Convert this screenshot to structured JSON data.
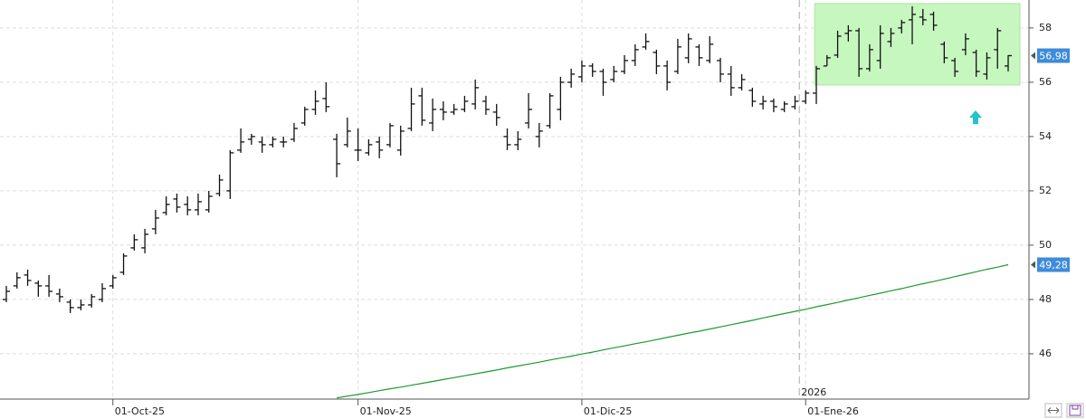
{
  "chart_data": {
    "type": "ohlc",
    "categories": [
      null,
      null,
      null,
      null,
      null,
      null,
      null,
      null,
      null,
      null,
      "01-Oct-25",
      null,
      null,
      null,
      null,
      null,
      null,
      null,
      null,
      null,
      null,
      null,
      null,
      null,
      null,
      null,
      null,
      null,
      null,
      null,
      null,
      null,
      null,
      "01-Nov-25",
      null,
      null,
      null,
      null,
      null,
      null,
      null,
      null,
      null,
      null,
      null,
      null,
      null,
      null,
      null,
      null,
      null,
      null,
      null,
      null,
      "01-Dic-25",
      null,
      null,
      null,
      null,
      null,
      null,
      null,
      null,
      null,
      null,
      null,
      null,
      null,
      null,
      null,
      null,
      null,
      null,
      null,
      null,
      "01-Ene-26",
      null,
      null,
      null,
      null,
      null,
      null,
      null,
      null,
      null,
      null,
      null,
      null,
      null,
      null,
      null,
      null,
      null,
      null,
      null
    ],
    "ohlc": {
      "color": "#111111",
      "open": [
        48.0,
        48.5,
        48.9,
        48.6,
        48.5,
        48.2,
        47.9,
        47.7,
        47.8,
        48.0,
        48.5,
        49.0,
        49.9,
        49.9,
        50.6,
        51.2,
        51.7,
        51.5,
        51.3,
        51.3,
        51.9,
        52.0,
        53.5,
        53.9,
        53.8,
        53.7,
        53.8,
        53.9,
        54.5,
        55.0,
        55.4,
        53.9,
        53.7,
        53.5,
        53.4,
        53.8,
        53.7,
        53.5,
        54.3,
        55.5,
        54.5,
        55.0,
        54.9,
        55.0,
        55.2,
        55.3,
        54.9,
        54.0,
        53.7,
        54.5,
        54.0,
        54.4,
        55.0,
        56.0,
        56.2,
        56.6,
        56.4,
        56.1,
        56.4,
        56.8,
        57.3,
        57.1,
        56.6,
        56.4,
        56.9,
        57.3,
        56.8,
        56.8,
        56.3,
        55.8,
        55.7,
        55.2,
        55.3,
        55.0,
        55.1,
        55.3,
        55.6,
        56.6,
        57.0,
        57.8,
        57.9,
        56.5,
        56.8,
        57.5,
        58.0,
        58.3,
        58.4,
        58.5,
        57.4,
        56.8,
        57.2,
        57.1,
        56.3,
        57.2,
        56.6
      ],
      "high": [
        48.5,
        49.0,
        49.1,
        48.7,
        48.9,
        48.4,
        48.0,
        48.0,
        48.2,
        48.6,
        48.9,
        49.7,
        50.4,
        50.6,
        51.3,
        51.8,
        51.9,
        51.8,
        51.9,
        52.0,
        52.6,
        53.5,
        54.3,
        54.1,
        54.0,
        54.0,
        54.0,
        54.5,
        55.1,
        55.7,
        56.0,
        54.1,
        54.7,
        54.3,
        53.9,
        54.0,
        54.5,
        54.4,
        55.8,
        55.8,
        55.4,
        55.3,
        55.2,
        55.5,
        56.1,
        55.5,
        55.2,
        54.3,
        54.2,
        55.6,
        54.5,
        55.6,
        56.2,
        56.5,
        56.8,
        56.7,
        56.5,
        56.6,
        57.0,
        57.4,
        57.8,
        57.2,
        56.8,
        57.6,
        57.8,
        57.4,
        57.7,
        56.9,
        56.6,
        56.3,
        55.8,
        55.5,
        55.4,
        55.3,
        55.5,
        55.7,
        56.6,
        57.0,
        57.9,
        58.1,
        58.0,
        57.4,
        58.1,
        58.0,
        58.3,
        58.8,
        58.7,
        58.6,
        57.5,
        56.9,
        57.8,
        57.2,
        57.1,
        58.0,
        57.0
      ],
      "low": [
        47.9,
        48.4,
        48.5,
        48.1,
        48.1,
        47.9,
        47.5,
        47.6,
        47.7,
        47.9,
        48.4,
        48.9,
        49.8,
        49.7,
        50.4,
        51.1,
        51.2,
        51.1,
        51.1,
        51.2,
        51.8,
        51.7,
        53.4,
        53.7,
        53.4,
        53.6,
        53.6,
        53.8,
        54.4,
        54.8,
        54.9,
        52.5,
        53.6,
        53.1,
        53.3,
        53.2,
        53.6,
        53.3,
        54.2,
        54.4,
        54.2,
        54.6,
        54.8,
        54.9,
        55.0,
        54.8,
        54.4,
        53.5,
        53.5,
        54.3,
        53.6,
        54.3,
        54.6,
        55.8,
        56.0,
        56.2,
        55.5,
        56.0,
        56.3,
        56.6,
        57.2,
        56.3,
        55.7,
        56.3,
        56.7,
        56.6,
        56.7,
        56.0,
        55.5,
        55.7,
        55.1,
        55.0,
        54.9,
        54.9,
        55.0,
        55.2,
        55.2,
        56.6,
        56.9,
        57.5,
        56.2,
        56.4,
        56.5,
        57.3,
        57.8,
        57.4,
        58.1,
        57.9,
        56.7,
        56.2,
        57.0,
        56.2,
        56.1,
        56.5,
        56.4
      ],
      "close": [
        48.3,
        48.8,
        48.7,
        48.5,
        48.3,
        48.1,
        47.7,
        47.8,
        48.1,
        48.4,
        48.8,
        49.6,
        50.2,
        50.4,
        51.0,
        51.5,
        51.4,
        51.3,
        51.6,
        51.8,
        52.4,
        53.4,
        53.8,
        54.0,
        53.7,
        53.9,
        53.8,
        54.3,
        55.0,
        55.3,
        55.1,
        53.0,
        54.2,
        53.5,
        53.7,
        53.5,
        54.4,
        54.2,
        55.2,
        54.6,
        55.0,
        54.9,
        55.0,
        55.3,
        55.8,
        55.0,
        54.7,
        53.7,
        53.9,
        55.0,
        54.2,
        55.5,
        56.0,
        56.3,
        56.6,
        56.4,
        56.0,
        56.4,
        56.8,
        57.2,
        57.5,
        56.6,
        56.0,
        57.3,
        57.6,
        56.9,
        57.4,
        56.3,
        55.8,
        56.1,
        55.3,
        55.3,
        55.1,
        55.2,
        55.3,
        55.6,
        56.5,
        56.9,
        57.7,
        57.9,
        56.5,
        57.2,
        57.8,
        57.8,
        58.2,
        58.5,
        58.3,
        58.1,
        56.9,
        56.4,
        57.6,
        56.4,
        56.9,
        57.9,
        56.98
      ]
    },
    "line": {
      "color": "#1e9a2e",
      "values": [
        null,
        null,
        null,
        null,
        null,
        null,
        null,
        null,
        null,
        null,
        null,
        null,
        null,
        null,
        null,
        null,
        null,
        null,
        null,
        null,
        null,
        null,
        null,
        null,
        null,
        null,
        null,
        null,
        null,
        null,
        null,
        44.37,
        44.44,
        44.5,
        44.57,
        44.64,
        44.71,
        44.77,
        44.84,
        44.91,
        44.98,
        45.05,
        45.12,
        45.19,
        45.26,
        45.33,
        45.4,
        45.48,
        45.55,
        45.62,
        45.69,
        45.77,
        45.84,
        45.91,
        45.99,
        46.06,
        46.14,
        46.22,
        46.29,
        46.37,
        46.44,
        46.52,
        46.6,
        46.68,
        46.76,
        46.83,
        46.91,
        46.99,
        47.07,
        47.15,
        47.23,
        47.32,
        47.4,
        47.48,
        47.56,
        47.64,
        47.73,
        47.81,
        47.89,
        47.98,
        48.06,
        48.15,
        48.23,
        48.32,
        48.4,
        48.49,
        48.58,
        48.66,
        48.75,
        48.84,
        48.93,
        49.02,
        49.11,
        49.19,
        49.28
      ]
    },
    "ylim": [
      44.33,
      59.03
    ],
    "yticks": [
      46,
      48,
      50,
      52,
      54,
      56,
      58
    ],
    "grid": true,
    "price_tags": [
      {
        "value": 56.98,
        "label": "56,98",
        "color": "#3d8bd9"
      },
      {
        "value": 49.28,
        "label": "49,28",
        "color": "#3d8bd9"
      }
    ],
    "year_divider": {
      "label": "2026",
      "at": "01-Ene-26"
    },
    "highlight": {
      "low": 55.9,
      "high": 58.9,
      "color": "#c6f7bf"
    }
  }
}
